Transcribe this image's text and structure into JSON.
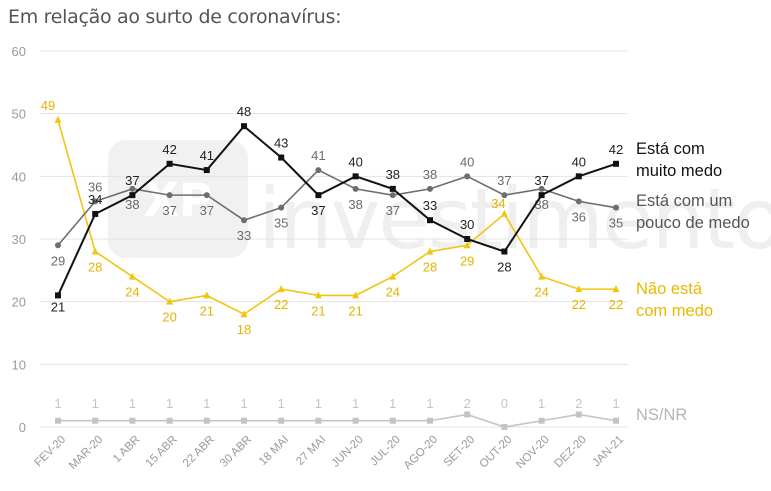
{
  "header": {
    "title": "Em relação ao surto de coronavírus:"
  },
  "watermark": {
    "text": "investimentos",
    "mark": "XP"
  },
  "colors": {
    "muito_medo": "#111111",
    "pouco_medo": "#6e6e6e",
    "sem_medo": "#f2c511",
    "nsnr": "#c4c4c4",
    "grid": "#e3e3e3",
    "axis_text": "#9a9a9a"
  },
  "chart_data": {
    "type": "line",
    "title": "Em relação ao surto de coronavírus:",
    "xlabel": "",
    "ylabel": "",
    "ylim": [
      0,
      60
    ],
    "yticks": [
      0,
      10,
      20,
      30,
      40,
      50,
      60
    ],
    "grid": true,
    "legend": "right, inline at line ends",
    "categories": [
      "FEV-20",
      "MAR-20",
      "1 ABR",
      "15 ABR",
      "22 ABR",
      "30 ABR",
      "18 MAI",
      "27 MAI",
      "JUN-20",
      "JUL-20",
      "AGO-20",
      "SET-20",
      "OUT-20",
      "NOV-20",
      "DEZ-20",
      "JAN-21"
    ],
    "series": [
      {
        "key": "muito_medo",
        "name_lines": [
          "Está com",
          "muito medo"
        ],
        "marker": "square",
        "values": [
          21,
          34,
          37,
          42,
          41,
          48,
          43,
          37,
          40,
          38,
          33,
          30,
          28,
          37,
          40,
          42
        ],
        "labels": [
          "21",
          "34",
          "37",
          "42",
          "41",
          "48",
          "43",
          "37",
          "40",
          "38",
          "33",
          "30",
          "28",
          "37",
          "40",
          "42"
        ]
      },
      {
        "key": "pouco_medo",
        "name_lines": [
          "Está com um",
          "pouco de medo"
        ],
        "marker": "circle",
        "values": [
          29,
          36,
          38,
          37,
          37,
          33,
          35,
          41,
          38,
          37,
          38,
          40,
          37,
          38,
          36,
          35
        ],
        "labels": [
          "29",
          "36",
          "38",
          "37",
          "37",
          "33",
          "35",
          "41",
          "38",
          "37",
          "38",
          "40",
          "37",
          "38",
          "36",
          "35"
        ]
      },
      {
        "key": "sem_medo",
        "name_lines": [
          "Não está",
          "com medo"
        ],
        "marker": "triangle",
        "values": [
          49,
          28,
          24,
          20,
          21,
          18,
          22,
          21,
          21,
          24,
          28,
          29,
          34,
          24,
          22,
          22
        ],
        "labels": [
          "49",
          "28",
          "24",
          "20",
          "21",
          "18",
          "22",
          "21",
          "21",
          "24",
          "28",
          "29",
          "34",
          "24",
          "22",
          "22"
        ]
      },
      {
        "key": "nsnr",
        "name_lines": [
          "NS/NR"
        ],
        "marker": "square",
        "values": [
          1,
          1,
          1,
          1,
          1,
          1,
          1,
          1,
          1,
          1,
          1,
          2,
          0,
          1,
          2,
          1
        ],
        "labels": [
          "1",
          "1",
          "1",
          "1",
          "1",
          "1",
          "1",
          "1",
          "1",
          "1",
          "1",
          "2",
          "0",
          "1",
          "2",
          "1"
        ]
      }
    ]
  }
}
